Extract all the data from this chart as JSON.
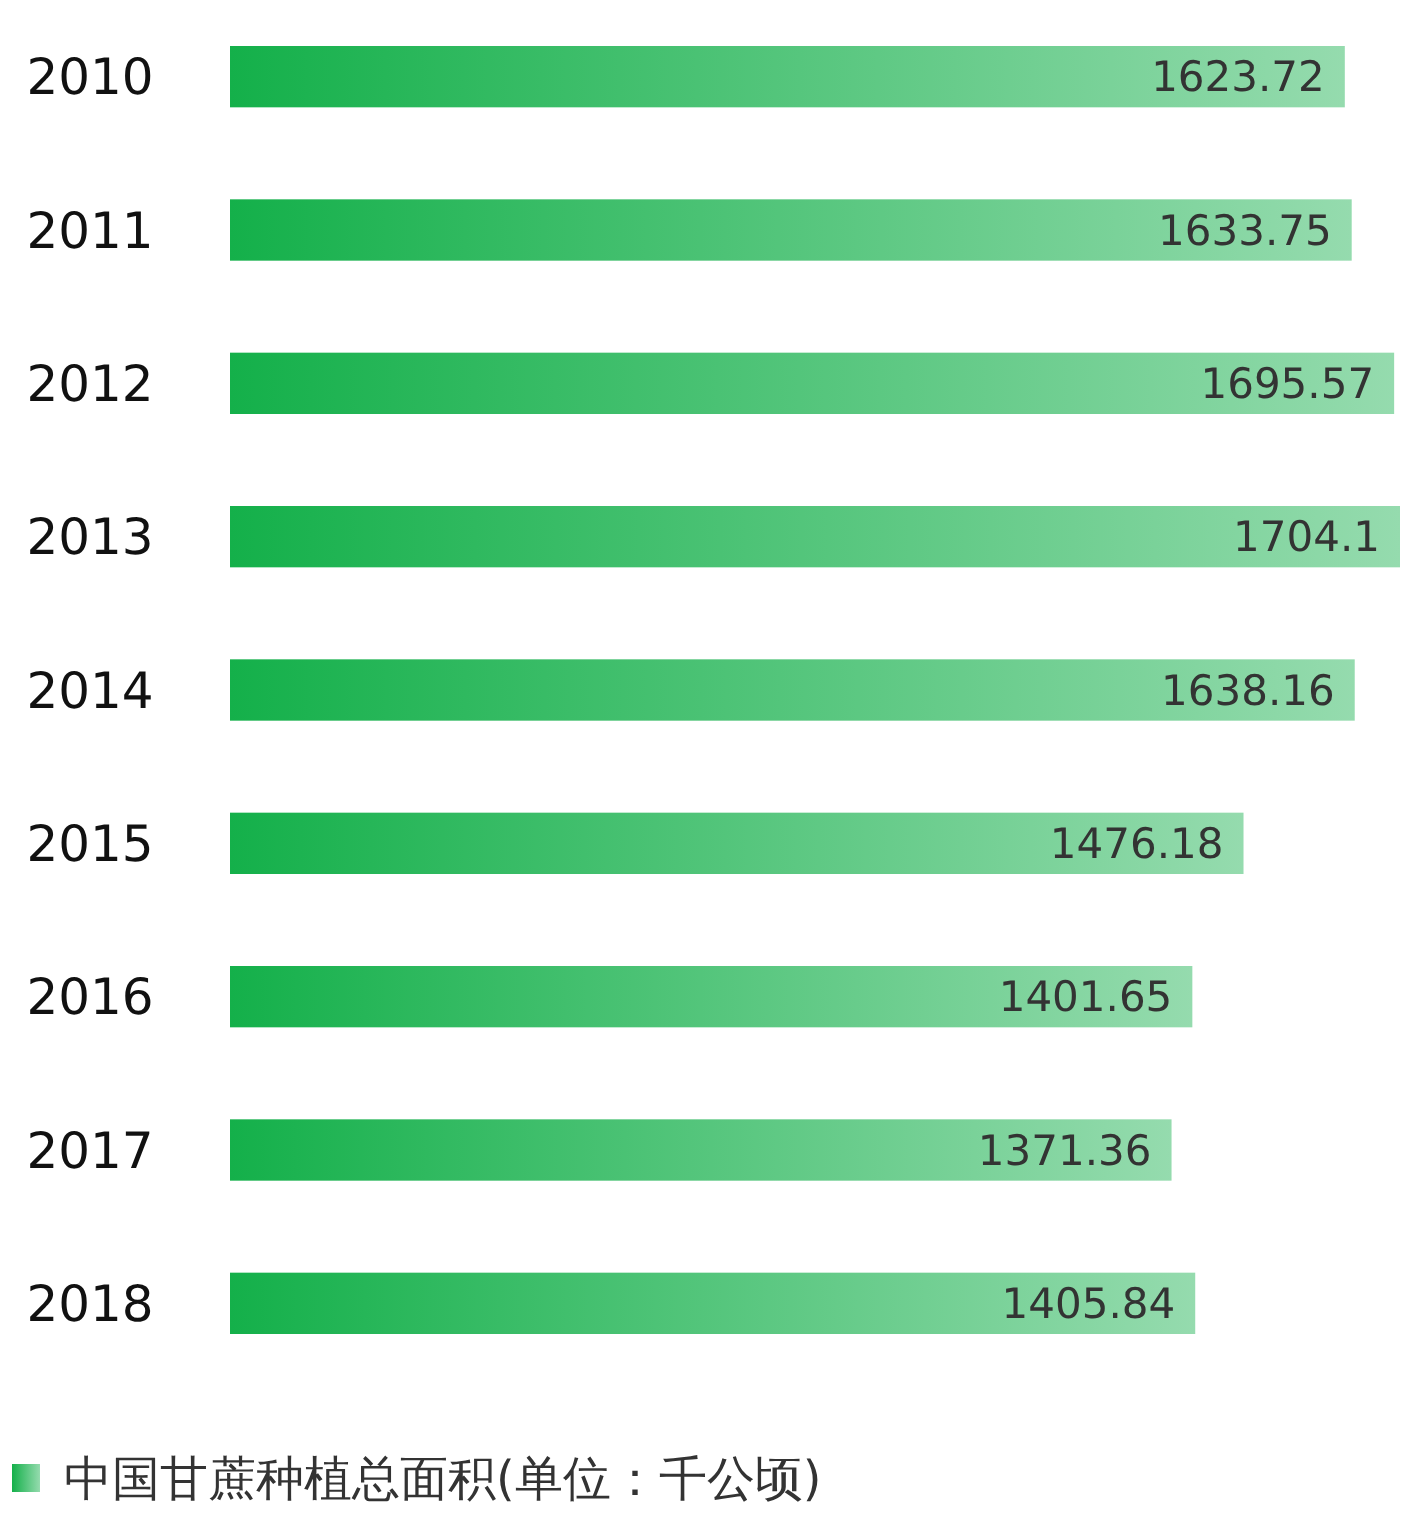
{
  "chart_data": {
    "type": "bar",
    "orientation": "horizontal",
    "categories": [
      "2010",
      "2011",
      "2012",
      "2013",
      "2014",
      "2015",
      "2016",
      "2017",
      "2018"
    ],
    "series": [
      {
        "name": "中国甘蔗种植总面积(单位：千公顷)",
        "color": "#14b04a",
        "values": [
          1623.72,
          1633.75,
          1695.57,
          1704.1,
          1638.16,
          1476.18,
          1401.65,
          1371.36,
          1405.84
        ]
      }
    ],
    "data_labels": true,
    "legend": "bottom"
  }
}
